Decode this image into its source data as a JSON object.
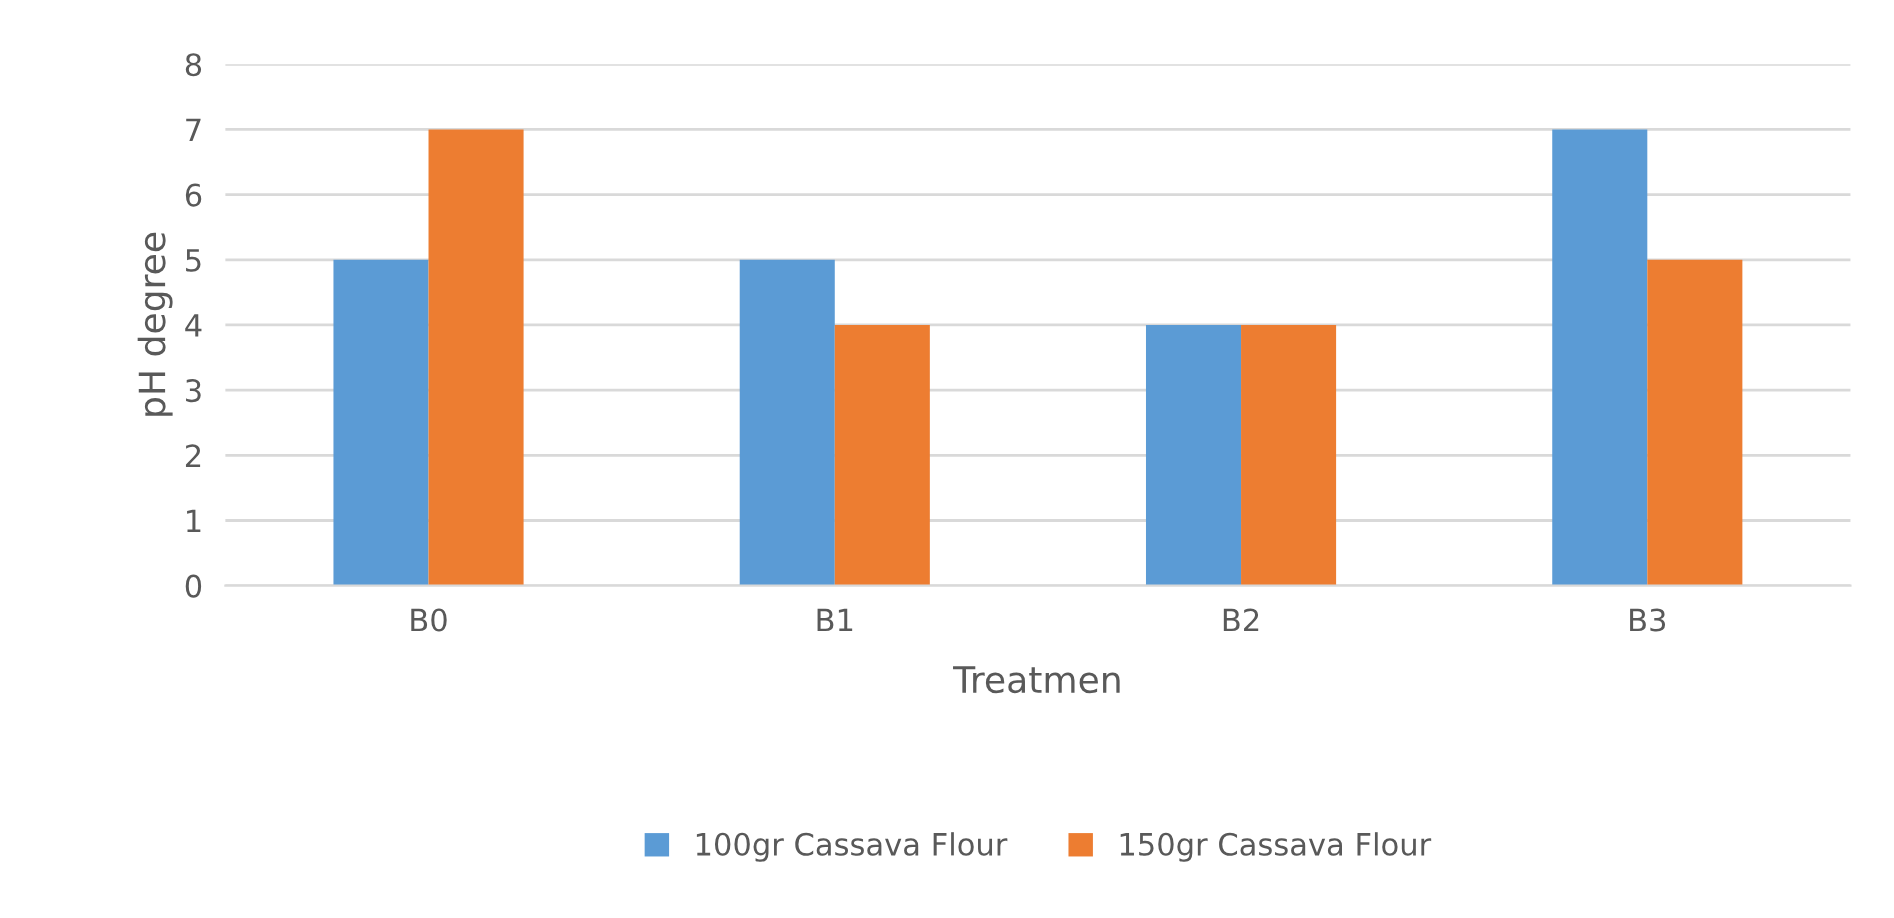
{
  "chart_data": {
    "type": "bar",
    "xlabel": "Treatmen",
    "ylabel": "pH degree",
    "categories": [
      "B0",
      "B1",
      "B2",
      "B3"
    ],
    "series": [
      {
        "name": "100gr Cassava Flour",
        "color": "#5b9bd5",
        "values": [
          5,
          5,
          4,
          7
        ]
      },
      {
        "name": "150gr Cassava Flour",
        "color": "#ed7d31",
        "values": [
          7,
          4,
          4,
          5
        ]
      }
    ],
    "ylim": [
      0,
      8
    ],
    "yticks": [
      0,
      1,
      2,
      3,
      4,
      5,
      6,
      7,
      8
    ],
    "grid": "y",
    "legend": "bottom"
  }
}
